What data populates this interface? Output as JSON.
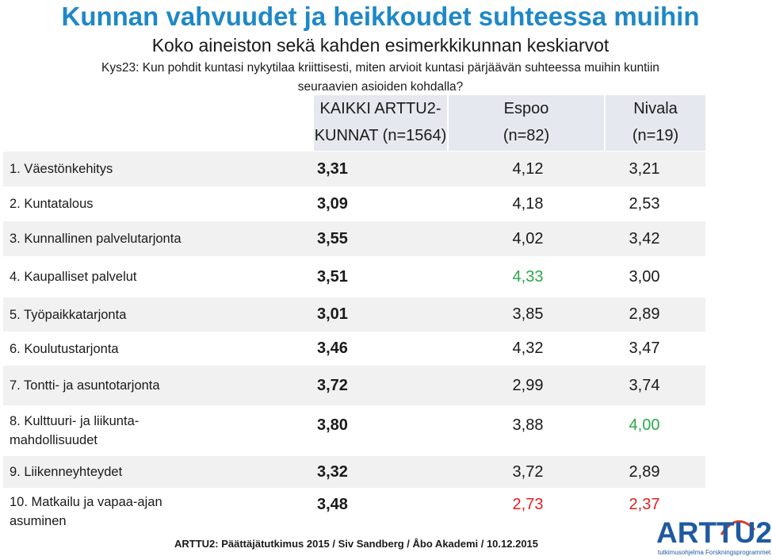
{
  "title": "Kunnan vahvuudet ja heikkoudet suhteessa muihin",
  "subtitle": "Koko aineiston sekä kahden esimerkkikunnan keskiarvot",
  "question_line1": "Kys23: Kun pohdit kuntasi nykytilaa kriittisesti, miten arvioit kuntasi pärjäävän suhteessa muihin kuntiin",
  "question_line2": "seuraavien asioiden kohdalla?",
  "headers": {
    "all_line1": "KAIKKI ARTTU2-",
    "all_line2_bold": "KUNNAT",
    "all_line2_n": "(n=1564)",
    "espoo_line1": "Espoo",
    "espoo_line2": "(n=82)",
    "nivala_line1": "Nivala",
    "nivala_line2": "(n=19)"
  },
  "rows": [
    {
      "label": "1. Väestönkehitys",
      "all": "3,31",
      "espoo": "4,12",
      "nivala": "3,21"
    },
    {
      "label": "2. Kuntatalous",
      "all": "3,09",
      "espoo": "4,18",
      "nivala": "2,53"
    },
    {
      "label": "3. Kunnallinen palvelutarjonta",
      "all": "3,55",
      "espoo": "4,02",
      "nivala": "3,42"
    },
    {
      "label": "4. Kaupalliset palvelut",
      "all": "3,51",
      "espoo": "4,33",
      "nivala": "3,00"
    },
    {
      "label": "5. Työpaikkatarjonta",
      "all": "3,01",
      "espoo": "3,85",
      "nivala": "2,89"
    },
    {
      "label": "6. Koulutustarjonta",
      "all": "3,46",
      "espoo": "4,32",
      "nivala": "3,47"
    },
    {
      "label": "7. Tontti- ja asuntotarjonta",
      "all": "3,72",
      "espoo": "2,99",
      "nivala": "3,74"
    },
    {
      "label_line1": "8. Kulttuuri- ja liikunta-",
      "label_line2": "mahdollisuudet",
      "all": "3,80",
      "espoo": "3,88",
      "nivala": "4,00"
    },
    {
      "label": "9. Liikenneyhteydet",
      "all": "3,32",
      "espoo": "3,72",
      "nivala": "2,89"
    },
    {
      "label_line1": "10. Matkailu ja vapaa-ajan",
      "label_line2": "asuminen",
      "all": "3,48",
      "espoo": "2,73",
      "nivala": "2,37"
    }
  ],
  "colors": {
    "title": "#1e88c7",
    "high": "#2aa84a",
    "low": "#e02020",
    "header_bg": "#e5e8ee",
    "row_shade": "#f1f1f1"
  },
  "footer": "ARTTU2: Päättäjätutkimus 2015 / Siv Sandberg / Åbo Akademi / 10.12.2015",
  "logo": {
    "text": "ARTTU2",
    "sub": "tutkimusohjelma  Forskningsprogrammet"
  }
}
